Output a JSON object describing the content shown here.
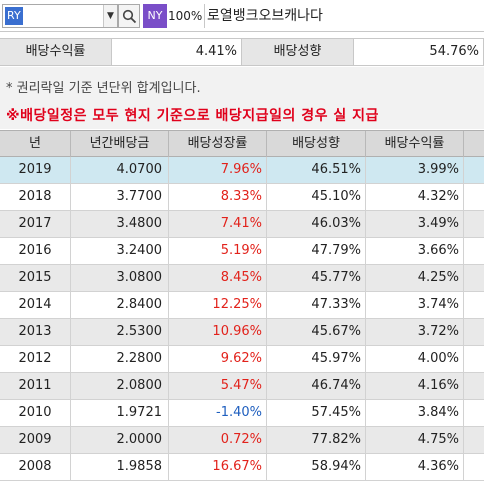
{
  "toolbar": {
    "ticker": "RY",
    "dropdown_glyph": "▼",
    "search_icon": "search-icon",
    "exchange_badge": "NY",
    "zoom": "100%",
    "stock_name": "로열뱅크오브캐나다",
    "colors": {
      "ticker_highlight": "#3a6fd0",
      "exchange_badge": "#7a4ec8"
    }
  },
  "summary": {
    "yield_label": "배당수익률",
    "yield_value": "4.41%",
    "payout_label": "배당성향",
    "payout_value": "54.76%"
  },
  "notes": {
    "annual_note": "* 권리락일 기준 년단위 합계입니다.",
    "warning": "※배당일정은 모두 현지 기준으로 배당지급일의 경우 실 지급"
  },
  "table": {
    "headers": [
      "년",
      "년간배당금",
      "배당성장률",
      "배당성향",
      "배당수익률"
    ],
    "rows": [
      [
        "2019",
        "4.0700",
        "7.96%",
        "46.51%",
        "3.99%"
      ],
      [
        "2018",
        "3.7700",
        "8.33%",
        "45.10%",
        "4.32%"
      ],
      [
        "2017",
        "3.4800",
        "7.41%",
        "46.03%",
        "3.49%"
      ],
      [
        "2016",
        "3.2400",
        "5.19%",
        "47.79%",
        "3.66%"
      ],
      [
        "2015",
        "3.0800",
        "8.45%",
        "45.77%",
        "4.25%"
      ],
      [
        "2014",
        "2.8400",
        "12.25%",
        "47.33%",
        "3.74%"
      ],
      [
        "2013",
        "2.5300",
        "10.96%",
        "45.67%",
        "3.72%"
      ],
      [
        "2012",
        "2.2800",
        "9.62%",
        "45.97%",
        "4.00%"
      ],
      [
        "2011",
        "2.0800",
        "5.47%",
        "46.74%",
        "4.16%"
      ],
      [
        "2010",
        "1.9721",
        "-1.40%",
        "57.45%",
        "3.84%"
      ],
      [
        "2009",
        "2.0000",
        "0.72%",
        "77.82%",
        "4.75%"
      ],
      [
        "2008",
        "1.9858",
        "16.67%",
        "58.94%",
        "4.36%"
      ]
    ],
    "colors": {
      "positive_growth": "#e2221b",
      "negative_growth": "#1f5fbf",
      "selected_row": "#cfe8f1"
    }
  }
}
